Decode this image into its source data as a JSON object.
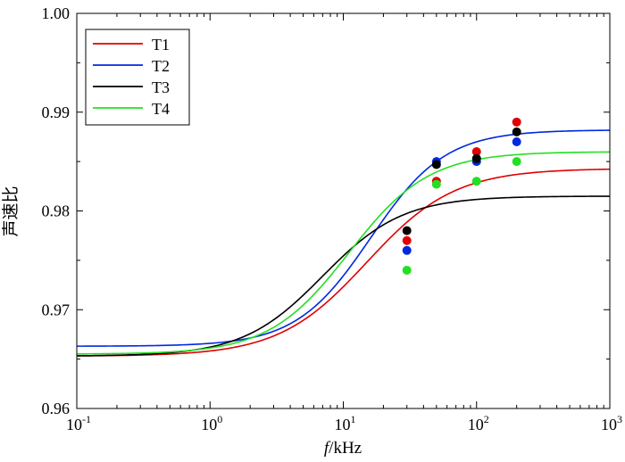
{
  "chart_data": {
    "type": "line",
    "title": "",
    "xlabel_italic": "f",
    "xlabel_rest": "/kHz",
    "ylabel": "声速比",
    "xscale": "log",
    "xlim": [
      0.1,
      1000
    ],
    "ylim": [
      0.96,
      1.0
    ],
    "grid": false,
    "legend_position": "top-left",
    "x_ticks": [
      {
        "base": "10",
        "exp": "-1",
        "value": 0.1
      },
      {
        "base": "10",
        "exp": "0",
        "value": 1
      },
      {
        "base": "10",
        "exp": "1",
        "value": 10
      },
      {
        "base": "10",
        "exp": "2",
        "value": 100
      },
      {
        "base": "10",
        "exp": "3",
        "value": 1000
      }
    ],
    "y_ticks": [
      {
        "label": "0.96",
        "value": 0.96
      },
      {
        "label": "0.97",
        "value": 0.97
      },
      {
        "label": "0.98",
        "value": 0.98
      },
      {
        "label": "0.99",
        "value": 0.99
      },
      {
        "label": "1.00",
        "value": 1.0
      }
    ],
    "series": [
      {
        "name": "T1",
        "color": "#e00000",
        "curve": {
          "low": 0.9653,
          "high": 0.9843,
          "fc": 15,
          "width": 0.33
        },
        "points": [
          {
            "x": 30,
            "y": 0.977
          },
          {
            "x": 50,
            "y": 0.983
          },
          {
            "x": 100,
            "y": 0.986
          },
          {
            "x": 200,
            "y": 0.989
          }
        ]
      },
      {
        "name": "T2",
        "color": "#0028e0",
        "curve": {
          "low": 0.9663,
          "high": 0.9882,
          "fc": 16,
          "width": 0.28
        },
        "points": [
          {
            "x": 30,
            "y": 0.976
          },
          {
            "x": 50,
            "y": 0.985
          },
          {
            "x": 100,
            "y": 0.985
          },
          {
            "x": 200,
            "y": 0.987
          }
        ]
      },
      {
        "name": "T3",
        "color": "#000000",
        "curve": {
          "low": 0.9653,
          "high": 0.9815,
          "fc": 7,
          "width": 0.3
        },
        "points": [
          {
            "x": 30,
            "y": 0.978
          },
          {
            "x": 50,
            "y": 0.9847
          },
          {
            "x": 100,
            "y": 0.9853
          },
          {
            "x": 200,
            "y": 0.988
          }
        ]
      },
      {
        "name": "T4",
        "color": "#22e022",
        "curve": {
          "low": 0.9655,
          "high": 0.986,
          "fc": 11,
          "width": 0.3
        },
        "points": [
          {
            "x": 30,
            "y": 0.974
          },
          {
            "x": 50,
            "y": 0.9827
          },
          {
            "x": 100,
            "y": 0.983
          },
          {
            "x": 200,
            "y": 0.985
          }
        ]
      }
    ]
  }
}
